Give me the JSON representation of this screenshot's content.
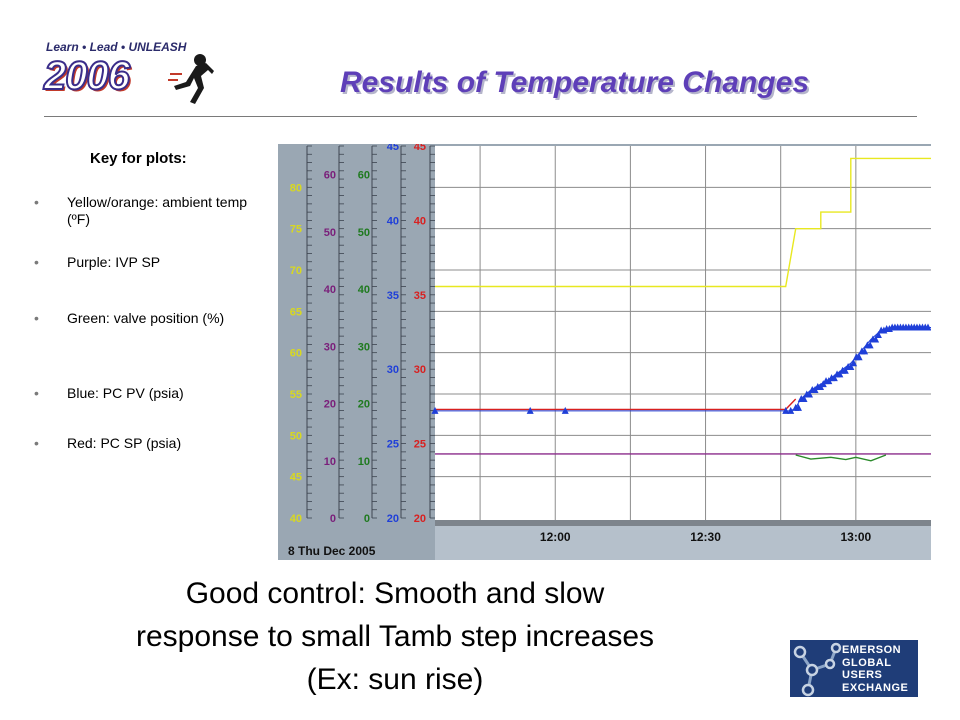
{
  "logo": {
    "tagline": [
      "Learn",
      "Lead",
      "UNLEASH"
    ],
    "year": "2006"
  },
  "title": "Results of Temperature Changes",
  "key": {
    "heading": "Key for plots:",
    "items": [
      {
        "label": "Yellow/orange: ambient temp (ºF)",
        "color": "#e8e820"
      },
      {
        "label": "Purple: IVP SP",
        "color": "#8a2a8a"
      },
      {
        "label": "Green: valve position (%)",
        "color": "#2a8a2a"
      },
      {
        "label": "Blue: PC PV (psia)",
        "color": "#1f3fd8"
      },
      {
        "label": "Red: PC SP (psia)",
        "color": "#d82020"
      }
    ]
  },
  "chart_data": {
    "type": "line",
    "date_label": "8 Thu Dec 2005",
    "x_ticks": [
      "12:00",
      "12:30",
      "13:00"
    ],
    "x_range": [
      "11:36",
      "13:15"
    ],
    "axes": [
      {
        "name": "ambient",
        "color": "#e8e820",
        "range": [
          40,
          85
        ],
        "ticks": [
          "40",
          "45",
          "50",
          "55",
          "60",
          "65",
          "70",
          "75",
          "80"
        ]
      },
      {
        "name": "ivp_sp",
        "color": "#8a2a8a",
        "range": [
          0,
          65
        ],
        "ticks": [
          "0",
          "10",
          "20",
          "30",
          "40",
          "50",
          "60"
        ]
      },
      {
        "name": "valve",
        "color": "#2a8a2a",
        "range": [
          0,
          65
        ],
        "ticks": [
          "0",
          "10",
          "20",
          "30",
          "40",
          "50",
          "60"
        ]
      },
      {
        "name": "pc_pv",
        "color": "#1f3fd8",
        "range": [
          20,
          45
        ],
        "ticks": [
          "20",
          "25",
          "30",
          "35",
          "40",
          "45"
        ]
      },
      {
        "name": "pc_sp",
        "color": "#d82020",
        "range": [
          20,
          45
        ],
        "ticks": [
          "20",
          "25",
          "30",
          "35",
          "40",
          "45"
        ]
      }
    ],
    "series": [
      {
        "axis": "ambient",
        "color": "#e8e820",
        "x": [
          "11:36",
          "12:46",
          "12:48",
          "12:53",
          "12:53",
          "12:59",
          "12:59",
          "13:15"
        ],
        "y": [
          68,
          68,
          75,
          75,
          77,
          77,
          83.5,
          83.5
        ]
      },
      {
        "axis": "pc_sp",
        "color": "#d82020",
        "x": [
          "11:36",
          "12:46",
          "12:48"
        ],
        "y": [
          27.3,
          27.3,
          28.0
        ]
      },
      {
        "axis": "ivp_sp",
        "color": "#8a2a8a",
        "x": [
          "11:36",
          "13:15"
        ],
        "y": [
          11.2,
          11.2
        ]
      },
      {
        "axis": "valve",
        "color": "#2a8a2a",
        "x": [
          "12:48",
          "12:51",
          "12:55",
          "12:58",
          "13:00",
          "13:03",
          "13:06"
        ],
        "y": [
          11.0,
          10.3,
          10.6,
          10.2,
          10.6,
          10.0,
          11.0
        ]
      },
      {
        "axis": "pc_pv",
        "color": "#1f3fd8",
        "x": [
          "11:36",
          "11:55",
          "12:02",
          "12:46",
          "12:47",
          "12:48",
          "12:49",
          "12:51",
          "12:53",
          "12:55",
          "12:57",
          "12:59",
          "13:01",
          "13:03",
          "13:05",
          "13:07",
          "13:10",
          "13:15"
        ],
        "y": [
          27.2,
          27.2,
          27.2,
          27.2,
          27.2,
          27.4,
          28.0,
          28.6,
          29.0,
          29.4,
          29.9,
          30.4,
          31.2,
          32.0,
          32.6,
          32.8,
          32.8,
          32.8
        ]
      }
    ]
  },
  "caption": [
    "Good control: Smooth and slow",
    "response to small Tamb step increases",
    "(Ex: sun rise)"
  ],
  "badge": {
    "lines": [
      "EMERSON",
      "GLOBAL",
      "USERS",
      "EXCHANGE"
    ]
  }
}
